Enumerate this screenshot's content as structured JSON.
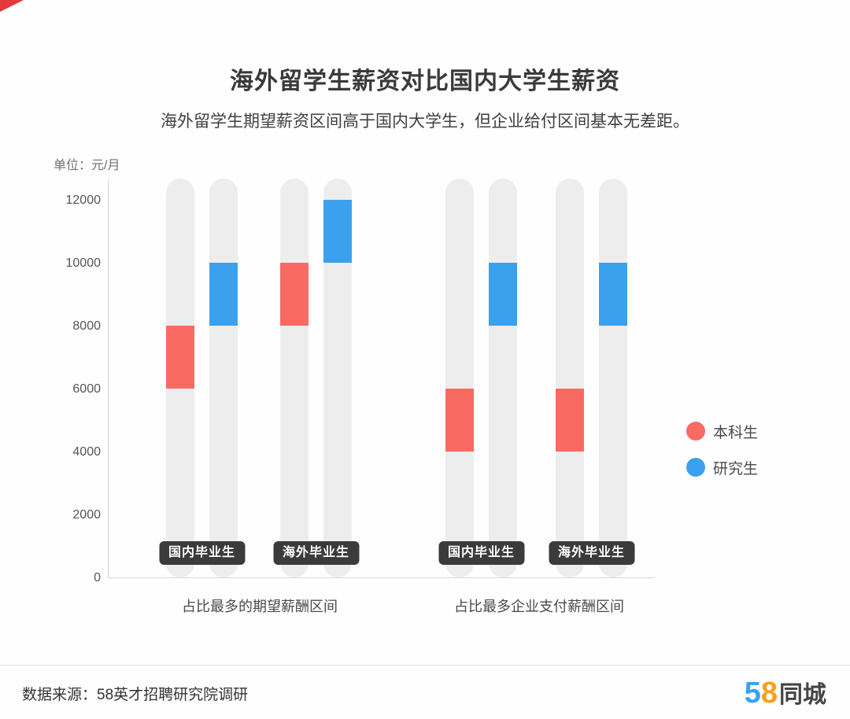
{
  "page": {
    "title": "海外留学生薪资对比国内大学生薪资",
    "subtitle": "海外留学生期望薪资区间高于国内大学生，但企业给付区间基本无差距。",
    "unit_label": "单位：元/月",
    "footer": {
      "source": "数据来源：58英才招聘研究院调研",
      "logo_digit_5": "5",
      "logo_digit_8": "8",
      "logo_text": "同城"
    }
  },
  "chart_data": {
    "type": "range-bar",
    "title": "海外留学生薪资对比国内大学生薪资",
    "subtitle": "海外留学生期望薪资区间高于国内大学生，但企业给付区间基本无差距。",
    "unit": "元/月",
    "ylim": [
      0,
      12600
    ],
    "yticks": [
      0,
      2000,
      4000,
      6000,
      8000,
      10000,
      12000
    ],
    "grid": false,
    "legend_position": "right",
    "legend": [
      {
        "name": "本科生",
        "color": "#F96A62"
      },
      {
        "name": "研究生",
        "color": "#3BA1EE"
      }
    ],
    "sections": [
      {
        "label": "占比最多的期望薪酬区间"
      },
      {
        "label": "占比最多企业支付薪酬区间"
      }
    ],
    "groups": [
      {
        "label": "国内毕业生",
        "section": "占比最多的期望薪酬区间",
        "bars": [
          {
            "series": "本科生",
            "low": 6000,
            "high": 8000
          },
          {
            "series": "研究生",
            "low": 8000,
            "high": 10000
          }
        ]
      },
      {
        "label": "海外毕业生",
        "section": "占比最多的期望薪酬区间",
        "bars": [
          {
            "series": "本科生",
            "low": 8000,
            "high": 10000
          },
          {
            "series": "研究生",
            "low": 10000,
            "high": 12000
          }
        ]
      },
      {
        "label": "国内毕业生",
        "section": "占比最多企业支付薪酬区间",
        "bars": [
          {
            "series": "本科生",
            "low": 4000,
            "high": 6000
          },
          {
            "series": "研究生",
            "low": 8000,
            "high": 10000
          }
        ]
      },
      {
        "label": "海外毕业生",
        "section": "占比最多企业支付薪酬区间",
        "bars": [
          {
            "series": "本科生",
            "low": 4000,
            "high": 6000
          },
          {
            "series": "研究生",
            "low": 8000,
            "high": 10000
          }
        ]
      }
    ],
    "colors": {
      "pill_background": "#EDEDED",
      "badge_background": "#3B3B3B",
      "badge_text": "#FFFFFF",
      "axis": "#D8D8D8",
      "corner_accent": "#E23A3A",
      "logo_blue": "#35A3F1",
      "logo_orange": "#F9A01B"
    }
  }
}
